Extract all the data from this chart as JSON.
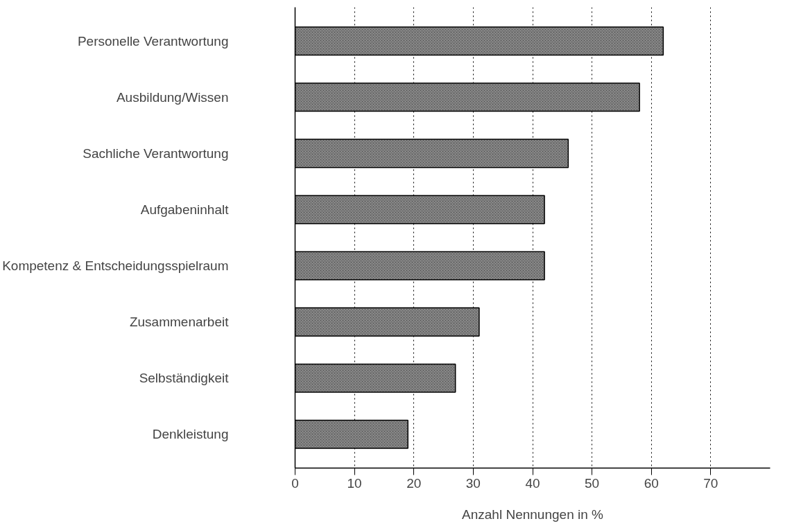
{
  "chart_data": {
    "type": "bar",
    "orientation": "horizontal",
    "xlabel": "Anzahl Nennungen in %",
    "categories": [
      "Personelle Verantwortung",
      "Ausbildung/Wissen",
      "Sachliche Verantwortung",
      "Aufgabeninhalt",
      "Kompetenz & Entscheidungsspielraum",
      "Zusammenarbeit",
      "Selbständigkeit",
      "Denkleistung"
    ],
    "values": [
      62,
      58,
      46,
      42,
      42,
      31,
      27,
      19
    ],
    "color": "#8c8c8c",
    "xlim": [
      0,
      80
    ],
    "xticks": [
      0,
      10,
      20,
      30,
      40,
      50,
      60,
      70
    ],
    "grid": "x",
    "line_style": "dotted"
  }
}
